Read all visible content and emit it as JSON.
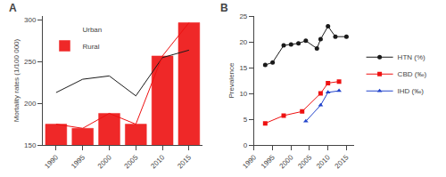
{
  "chart_data": [
    {
      "type": "bar",
      "x": [
        1990,
        1995,
        2000,
        2005,
        2010,
        2015
      ],
      "series": [
        {
          "name": "Urban",
          "color": "#1a1a1a",
          "values": [
            213,
            229,
            233,
            209,
            255,
            264
          ]
        },
        {
          "name": "Rural",
          "color": "#ee1111",
          "values": [
            175,
            170,
            188,
            175,
            257,
            297
          ]
        }
      ],
      "xlim": [
        1987.5,
        2017.5
      ],
      "xticks": [
        1990,
        1995,
        2000,
        2005,
        2010,
        2015
      ],
      "ylim": [
        150,
        305
      ],
      "yticks": [
        150,
        200,
        250,
        300
      ],
      "ylabel": "Mortality rates (1/100 000)",
      "legend": "upper left",
      "grid": false,
      "annotations": [
        "A"
      ]
    },
    {
      "type": "line",
      "series": [
        {
          "name": "HTN (%)",
          "color": "#1a1a1a",
          "marker": "circle",
          "x": [
            1993,
            1995,
            1998,
            2000,
            2002,
            2004,
            2007,
            2008,
            2010,
            2012,
            2015
          ],
          "values": [
            15.5,
            16.0,
            19.3,
            19.5,
            19.7,
            20.2,
            18.7,
            20.5,
            23.0,
            21.0,
            21.0
          ]
        },
        {
          "name": "CBD (‰)",
          "color": "#ee1111",
          "marker": "square",
          "x": [
            1993,
            1998,
            2003,
            2008,
            2010,
            2013
          ],
          "values": [
            4.2,
            5.7,
            6.5,
            10.0,
            12.0,
            12.3
          ]
        },
        {
          "name": "IHD (‰)",
          "color": "#2244cc",
          "marker": "triangle-up",
          "x": [
            2004,
            2008,
            2010,
            2013
          ],
          "values": [
            4.6,
            7.7,
            10.2,
            10.5
          ]
        }
      ],
      "xlim": [
        1990,
        2017
      ],
      "xticks": [
        1990,
        1995,
        2000,
        2005,
        2010,
        2015
      ],
      "ylim": [
        0,
        25
      ],
      "yticks": [
        0,
        5,
        10,
        15,
        20,
        25
      ],
      "ylabel": "Prevalence",
      "legend": "right",
      "grid": false,
      "annotations": [
        "B"
      ]
    }
  ]
}
